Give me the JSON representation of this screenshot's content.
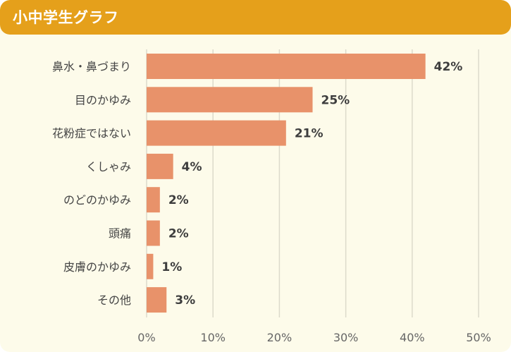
{
  "header": {
    "title": "小中学生グラフ"
  },
  "chart_data": {
    "type": "bar",
    "orientation": "horizontal",
    "title": "小中学生グラフ",
    "categories": [
      "鼻水・鼻づまり",
      "目のかゆみ",
      "花粉症ではない",
      "くしゃみ",
      "のどのかゆみ",
      "頭痛",
      "皮膚のかゆみ",
      "その他"
    ],
    "values": [
      42,
      25,
      21,
      4,
      2,
      2,
      1,
      3
    ],
    "value_labels": [
      "42%",
      "25%",
      "21%",
      "4%",
      "2%",
      "2%",
      "1%",
      "3%"
    ],
    "xlim": [
      0,
      50
    ],
    "xticks": [
      0,
      10,
      20,
      30,
      40,
      50
    ],
    "xtick_labels": [
      "0%",
      "10%",
      "20%",
      "30%",
      "40%",
      "50%"
    ],
    "xlabel": "",
    "ylabel": "",
    "grid": "vertical",
    "legend": "none",
    "colors": {
      "bar": "#e8926a",
      "grid": "#dcdacb",
      "header": "#e5a01b",
      "background": "#fdfbea"
    }
  }
}
